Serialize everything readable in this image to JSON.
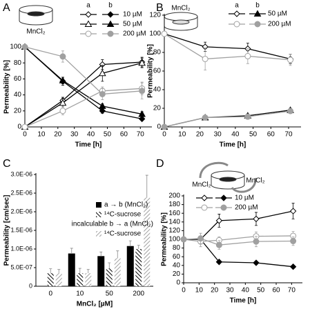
{
  "chart_data": [
    {
      "type": "line",
      "label": "A",
      "xlabel": "Time [h]",
      "ylabel": "Permeability [%]",
      "x": [
        0,
        23,
        47,
        71
      ],
      "xlim": [
        0,
        77
      ],
      "xticks": [
        0,
        10,
        20,
        30,
        40,
        50,
        60,
        70
      ],
      "ylim": [
        0,
        100
      ],
      "yticks": [
        0,
        20,
        40,
        60,
        80,
        100
      ],
      "annotations": [
        "MnCl₂"
      ],
      "legend_columns": [
        "a",
        "b"
      ],
      "series": [
        {
          "name": "10 µM",
          "color": "#000000",
          "markers": [
            "diamond",
            "diamond"
          ],
          "a": [
            0,
            33,
            78,
            81
          ],
          "a_errors": [
            1,
            4,
            6,
            6
          ],
          "b": [
            100,
            57,
            20,
            10
          ],
          "b_errors": [
            1,
            5,
            3,
            2
          ]
        },
        {
          "name": "50 µM",
          "color": "#000000",
          "markers": [
            "triangle",
            "triangle"
          ],
          "a": [
            0,
            30,
            67,
            80
          ],
          "a_errors": [
            1,
            5,
            10,
            6
          ],
          "b": [
            100,
            58,
            26,
            16
          ],
          "b_errors": [
            1,
            4,
            3,
            3
          ]
        },
        {
          "name": "200 µM",
          "color": "#a0a0a0",
          "markers": [
            "circle",
            "circle"
          ],
          "a": [
            0,
            20,
            45,
            48
          ],
          "a_errors": [
            1,
            5,
            5,
            8
          ],
          "b": [
            100,
            88,
            41,
            45
          ],
          "b_errors": [
            1,
            7,
            7,
            10
          ]
        }
      ]
    },
    {
      "type": "line",
      "label": "B",
      "xlabel": "Time [h]",
      "ylabel": "Permeability [%]",
      "x": [
        0,
        23,
        47,
        71
      ],
      "xlim": [
        0,
        77
      ],
      "xticks": [
        0,
        10,
        20,
        30,
        40,
        50,
        60,
        70
      ],
      "ylim": [
        0,
        120
      ],
      "yticks": [
        0,
        20,
        40,
        60,
        80,
        100,
        120
      ],
      "annotations": [
        "MnCl₂"
      ],
      "legend_columns": [
        "a",
        "b"
      ],
      "series": [
        {
          "name": "50 µM",
          "color": "#000000",
          "markers": [
            "diamond",
            "triangle"
          ],
          "a": [
            100,
            86,
            84,
            73
          ],
          "a_errors": [
            1,
            5,
            6,
            5
          ],
          "b": [
            0,
            10,
            12,
            18
          ],
          "b_errors": [
            1,
            2,
            2,
            2
          ]
        },
        {
          "name": "200 µM",
          "color": "#a0a0a0",
          "markers": [
            "circle",
            "circle"
          ],
          "a": [
            100,
            73,
            76,
            72
          ],
          "a_errors": [
            1,
            12,
            8,
            6
          ],
          "b": [
            0,
            10,
            11,
            17
          ],
          "b_errors": [
            1,
            2,
            2,
            2
          ]
        }
      ]
    },
    {
      "type": "bar",
      "label": "C",
      "xlabel": "MnCl₂ [µM]",
      "ylabel": "Permeability [cm/sec]",
      "categories": [
        "0",
        "10",
        "50",
        "200"
      ],
      "ylim": [
        0,
        3e-06
      ],
      "yticks": [
        0,
        {
          "value": 5e-07,
          "label": "5.0E-07"
        },
        {
          "value": 1e-06,
          "label": "1.0E-06"
        },
        {
          "value": 1.5e-06,
          "label": "1.5E-06"
        },
        {
          "value": 2e-06,
          "label": "2.0E-06"
        },
        {
          "value": 2.5e-06,
          "label": "2.5E-06"
        },
        {
          "value": 3e-06,
          "label": "3.0E-06"
        }
      ],
      "series": [
        {
          "name": "a → b (MnCl₂)",
          "color": "#000000",
          "pattern": "solid",
          "values": [
            null,
            8.7e-07,
            8e-07,
            1.07e-06
          ],
          "errors": [
            null,
            1.5e-07,
            1.2e-07,
            1.5e-07
          ]
        },
        {
          "name": "¹⁴C-sucrose",
          "color": "#000000",
          "pattern": "hatch",
          "values": [
            3.5e-07,
            3.5e-07,
            4.8e-07,
            1e-06
          ],
          "errors": [
            1.2e-07,
            1.3e-07,
            1.5e-07,
            1e-07
          ]
        },
        {
          "name": "incalculable b → a (MnCl₂)",
          "values": [
            null,
            null,
            null,
            null
          ]
        },
        {
          "name": "¹⁴C-sucrose",
          "color": "#a0a0a0",
          "pattern": "hatch",
          "values": [
            3.5e-07,
            3.5e-07,
            7.5e-07,
            2.38e-06
          ],
          "errors": [
            1e-07,
            1e-07,
            2e-07,
            6e-07
          ]
        }
      ]
    },
    {
      "type": "line",
      "label": "D",
      "xlabel": "Time [h]",
      "ylabel": "Permeability [%]",
      "x": [
        0,
        11,
        23,
        47,
        71
      ],
      "xlim": [
        0,
        77
      ],
      "xticks": [
        0,
        10,
        20,
        30,
        40,
        50,
        60,
        70
      ],
      "ylim": [
        0,
        200
      ],
      "yticks": [
        0,
        20,
        40,
        60,
        80,
        100,
        120,
        140,
        160,
        180,
        200
      ],
      "annotations": [
        "MnCl₂",
        "MnCl₂"
      ],
      "series": [
        {
          "name": "10 µM",
          "color": "#000000",
          "markers": [
            "diamond",
            "diamond"
          ],
          "a": [
            100,
            100,
            143,
            147,
            165
          ],
          "a_errors": [
            3,
            8,
            15,
            15,
            18
          ],
          "b": [
            100,
            100,
            48,
            46,
            37
          ],
          "b_errors": [
            3,
            5,
            3,
            3,
            3
          ]
        },
        {
          "name": "200 µM",
          "color": "#a0a0a0",
          "markers": [
            "circle",
            "circle"
          ],
          "a": [
            100,
            95,
            98,
            107,
            108
          ],
          "a_errors": [
            3,
            12,
            8,
            10,
            10
          ],
          "b": [
            100,
            102,
            87,
            95,
            96
          ],
          "b_errors": [
            3,
            12,
            10,
            12,
            10
          ]
        }
      ]
    }
  ]
}
